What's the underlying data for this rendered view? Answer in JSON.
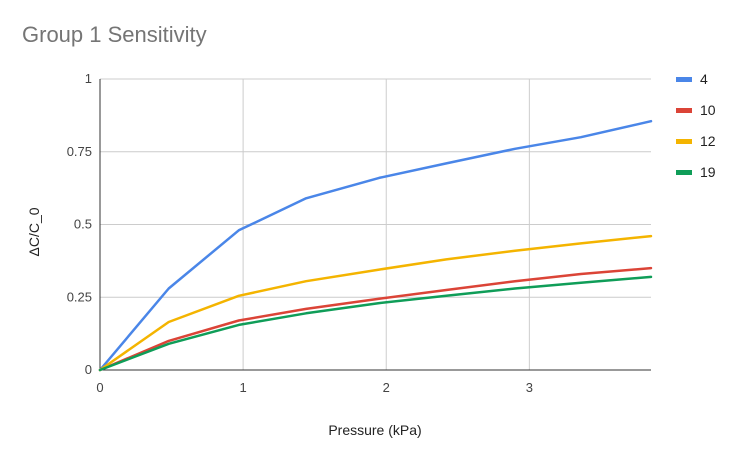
{
  "chart_data": {
    "type": "line",
    "title": "Group 1 Sensitivity",
    "xlabel": "Pressure (kPa)",
    "ylabel": "ΔC/C_0",
    "xlim": [
      0,
      3.85
    ],
    "ylim": [
      0,
      1
    ],
    "xticks": [
      0,
      1,
      2,
      3
    ],
    "xtick_labels": [
      "0",
      "1",
      "2",
      "3"
    ],
    "yticks": [
      0,
      0.25,
      0.5,
      0.75,
      1
    ],
    "ytick_labels": [
      "0",
      "0.25",
      "0.5",
      "0.75",
      "1"
    ],
    "grid": true,
    "legend_position": "right",
    "series": [
      {
        "name": "4",
        "color": "#4a86e8",
        "x": [
          0,
          0.48,
          0.97,
          1.44,
          1.95,
          2.42,
          2.9,
          3.36,
          3.85
        ],
        "y": [
          0,
          0.28,
          0.48,
          0.59,
          0.66,
          0.71,
          0.76,
          0.8,
          0.855
        ]
      },
      {
        "name": "10",
        "color": "#db4437",
        "x": [
          0,
          0.48,
          0.97,
          1.44,
          1.95,
          2.42,
          2.9,
          3.36,
          3.85
        ],
        "y": [
          0,
          0.1,
          0.17,
          0.21,
          0.245,
          0.275,
          0.305,
          0.33,
          0.35
        ]
      },
      {
        "name": "12",
        "color": "#f4b400",
        "x": [
          0,
          0.48,
          0.97,
          1.44,
          1.95,
          2.42,
          2.9,
          3.36,
          3.85
        ],
        "y": [
          0,
          0.165,
          0.255,
          0.305,
          0.345,
          0.38,
          0.41,
          0.435,
          0.46
        ]
      },
      {
        "name": "19",
        "color": "#0f9d58",
        "x": [
          0,
          0.48,
          0.97,
          1.44,
          1.95,
          2.42,
          2.9,
          3.36,
          3.85
        ],
        "y": [
          0,
          0.09,
          0.155,
          0.195,
          0.23,
          0.255,
          0.28,
          0.3,
          0.32
        ]
      }
    ]
  }
}
